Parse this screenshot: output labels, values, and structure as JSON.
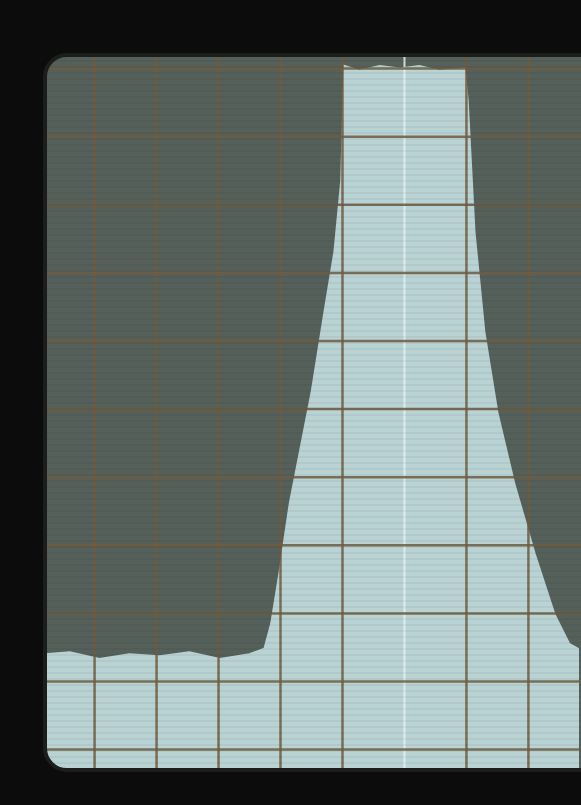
{
  "chart_data": {
    "type": "area",
    "x": [
      -0.8,
      -0.4,
      0.08,
      0.56,
      1.05,
      1.53,
      2.02,
      2.5,
      2.74,
      2.85,
      2.98,
      3.15,
      3.31,
      3.5,
      3.71,
      3.87,
      3.98,
      4.03,
      4.27,
      4.6,
      4.92,
      5.24,
      5.56,
      5.97,
      6.02,
      6.13,
      6.29,
      6.5,
      6.77,
      7.1,
      7.42,
      7.66,
      7.8
    ],
    "values": [
      1.4,
      1.43,
      1.33,
      1.4,
      1.37,
      1.43,
      1.33,
      1.4,
      1.48,
      1.85,
      2.58,
      3.62,
      4.36,
      5.24,
      6.43,
      7.31,
      8.35,
      10.04,
      9.97,
      10.04,
      10.0,
      10.04,
      9.97,
      10.0,
      9.53,
      7.6,
      6.13,
      4.95,
      3.91,
      2.88,
      1.99,
      1.55,
      1.48
    ],
    "color": "#b9d2d4",
    "xlim": [
      -0.8,
      7.8
    ],
    "ylim": [
      -0.3,
      10.2
    ],
    "xticks": [
      0,
      1,
      2,
      3,
      4,
      5,
      6,
      7
    ],
    "yticks": [
      0,
      1,
      2,
      3,
      4,
      5,
      6,
      7,
      8,
      9,
      10
    ],
    "grid": true,
    "tick_labels": false
  }
}
